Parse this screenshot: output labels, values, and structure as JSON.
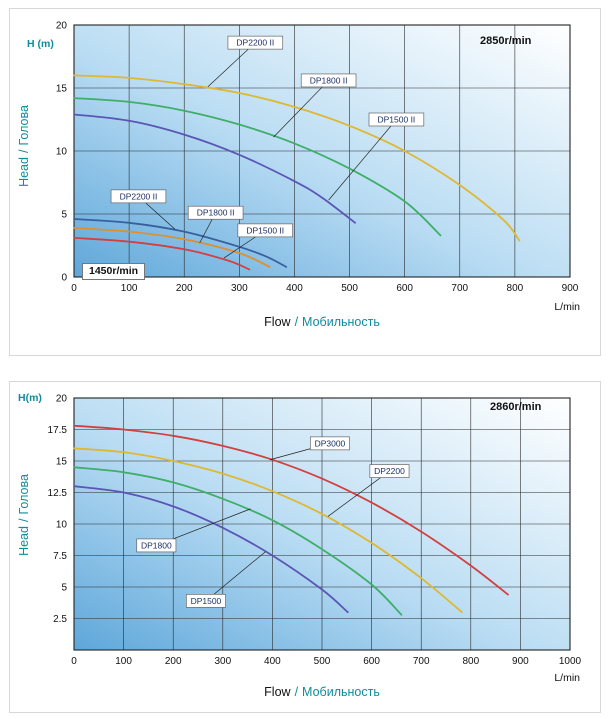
{
  "page": {
    "background": "#ffffff",
    "accent_teal": "#0e8c9d"
  },
  "chart_data": [
    {
      "type": "line",
      "title_rpm": "2850r/min",
      "secondary_rpm": "1450r/min",
      "y_unit": "H (m)",
      "x_unit": "L/min",
      "ylabel_en": "Head",
      "ylabel_ru": "Голова",
      "xlabel_en": "Flow",
      "xlabel_ru": "Мобильность",
      "label_sep": "/",
      "xlim": [
        0,
        900
      ],
      "ylim": [
        0,
        20
      ],
      "x_ticks": [
        0,
        100,
        200,
        300,
        400,
        500,
        600,
        700,
        800,
        900
      ],
      "y_ticks": [
        0,
        5,
        10,
        15,
        20
      ],
      "grid": true,
      "legend_position": "annotated-callouts",
      "bg_gradient": [
        "#ffffff",
        "#b9dcf3",
        "#5ea7da"
      ],
      "series": [
        {
          "name": "DP2200II-2850",
          "color": "#dfb832",
          "label": {
            "text": "DP2200 II",
            "x": 329,
            "y": 18.6,
            "tx": 243,
            "ty": 15.1
          },
          "points": [
            [
              0,
              16.0
            ],
            [
              100,
              15.8
            ],
            [
              200,
              15.3
            ],
            [
              300,
              14.6
            ],
            [
              400,
              13.5
            ],
            [
              500,
              12.0
            ],
            [
              600,
              10.0
            ],
            [
              700,
              7.3
            ],
            [
              780,
              4.5
            ],
            [
              808,
              2.9
            ]
          ]
        },
        {
          "name": "DP1800II-2850",
          "color": "#3fae68",
          "label": {
            "text": "DP1800 II",
            "x": 462,
            "y": 15.6,
            "tx": 362,
            "ty": 11.1
          },
          "points": [
            [
              0,
              14.2
            ],
            [
              100,
              13.9
            ],
            [
              200,
              13.2
            ],
            [
              300,
              12.1
            ],
            [
              400,
              10.6
            ],
            [
              500,
              8.6
            ],
            [
              600,
              6.0
            ],
            [
              665,
              3.3
            ]
          ]
        },
        {
          "name": "DP1500II-2850",
          "color": "#5b55b5",
          "label": {
            "text": "DP1500 II",
            "x": 585,
            "y": 12.5,
            "tx": 462,
            "ty": 6.1
          },
          "points": [
            [
              0,
              12.9
            ],
            [
              100,
              12.4
            ],
            [
              200,
              11.3
            ],
            [
              300,
              9.7
            ],
            [
              400,
              7.6
            ],
            [
              450,
              6.3
            ],
            [
              510,
              4.3
            ]
          ]
        },
        {
          "name": "DP2200II-1450",
          "color": "#3a5fa0",
          "label": {
            "text": "DP2200 II",
            "x": 117,
            "y": 6.4,
            "tx": 183,
            "ty": 3.8
          },
          "points": [
            [
              0,
              4.6
            ],
            [
              100,
              4.3
            ],
            [
              200,
              3.6
            ],
            [
              300,
              2.4
            ],
            [
              350,
              1.6
            ],
            [
              385,
              0.8
            ]
          ]
        },
        {
          "name": "DP1800II-1450",
          "color": "#df8f2f",
          "label": {
            "text": "DP1800 II",
            "x": 257,
            "y": 5.1,
            "tx": 228,
            "ty": 2.7
          },
          "points": [
            [
              0,
              3.9
            ],
            [
              100,
              3.6
            ],
            [
              200,
              3.0
            ],
            [
              300,
              1.9
            ],
            [
              355,
              0.8
            ]
          ]
        },
        {
          "name": "DP1500II-1450",
          "color": "#d24040",
          "label": {
            "text": "DP1500 II",
            "x": 347,
            "y": 3.7,
            "tx": 272,
            "ty": 1.5
          },
          "points": [
            [
              0,
              3.1
            ],
            [
              100,
              2.8
            ],
            [
              200,
              2.2
            ],
            [
              280,
              1.3
            ],
            [
              318,
              0.6
            ]
          ]
        }
      ]
    },
    {
      "type": "line",
      "title_rpm": "2860r/min",
      "y_unit": "H(m)",
      "x_unit": "L/min",
      "ylabel_en": "Head",
      "ylabel_ru": "Голова",
      "xlabel_en": "Flow",
      "xlabel_ru": "Мобильность",
      "label_sep": "/",
      "xlim": [
        0,
        1000
      ],
      "ylim": [
        0,
        20
      ],
      "x_ticks": [
        0,
        100,
        200,
        300,
        400,
        500,
        600,
        700,
        800,
        900,
        1000
      ],
      "y_ticks": [
        2.5,
        5,
        7.5,
        10,
        12.5,
        15,
        17.5,
        20
      ],
      "grid": true,
      "legend_position": "annotated-callouts",
      "bg_gradient": [
        "#ffffff",
        "#b9dcf3",
        "#5ea7da"
      ],
      "series": [
        {
          "name": "DP3000-2860",
          "color": "#d24040",
          "label": {
            "text": "DP3000",
            "x": 516,
            "y": 16.4,
            "tx": 395,
            "ty": 15.1
          },
          "points": [
            [
              0,
              17.8
            ],
            [
              100,
              17.5
            ],
            [
              200,
              17.0
            ],
            [
              300,
              16.2
            ],
            [
              400,
              15.1
            ],
            [
              500,
              13.6
            ],
            [
              600,
              11.7
            ],
            [
              700,
              9.4
            ],
            [
              800,
              6.7
            ],
            [
              875,
              4.4
            ]
          ]
        },
        {
          "name": "DP2200-2860",
          "color": "#dfb832",
          "label": {
            "text": "DP2200",
            "x": 636,
            "y": 14.2,
            "tx": 512,
            "ty": 10.6
          },
          "points": [
            [
              0,
              16.0
            ],
            [
              100,
              15.7
            ],
            [
              200,
              15.0
            ],
            [
              300,
              14.0
            ],
            [
              400,
              12.6
            ],
            [
              500,
              10.8
            ],
            [
              600,
              8.5
            ],
            [
              700,
              5.7
            ],
            [
              782,
              3.0
            ]
          ]
        },
        {
          "name": "DP1800-2860",
          "color": "#3fae68",
          "label": {
            "text": "DP1800",
            "x": 166,
            "y": 8.3,
            "tx": 356,
            "ty": 11.2
          },
          "points": [
            [
              0,
              14.5
            ],
            [
              100,
              14.1
            ],
            [
              200,
              13.3
            ],
            [
              300,
              12.0
            ],
            [
              400,
              10.3
            ],
            [
              500,
              8.0
            ],
            [
              600,
              5.2
            ],
            [
              660,
              2.8
            ]
          ]
        },
        {
          "name": "DP1500-2860",
          "color": "#5b55b5",
          "label": {
            "text": "DP1500",
            "x": 266,
            "y": 3.9,
            "tx": 386,
            "ty": 7.8
          },
          "points": [
            [
              0,
              13.0
            ],
            [
              100,
              12.5
            ],
            [
              200,
              11.4
            ],
            [
              300,
              9.7
            ],
            [
              400,
              7.5
            ],
            [
              500,
              4.8
            ],
            [
              552,
              3.0
            ]
          ]
        }
      ]
    }
  ]
}
